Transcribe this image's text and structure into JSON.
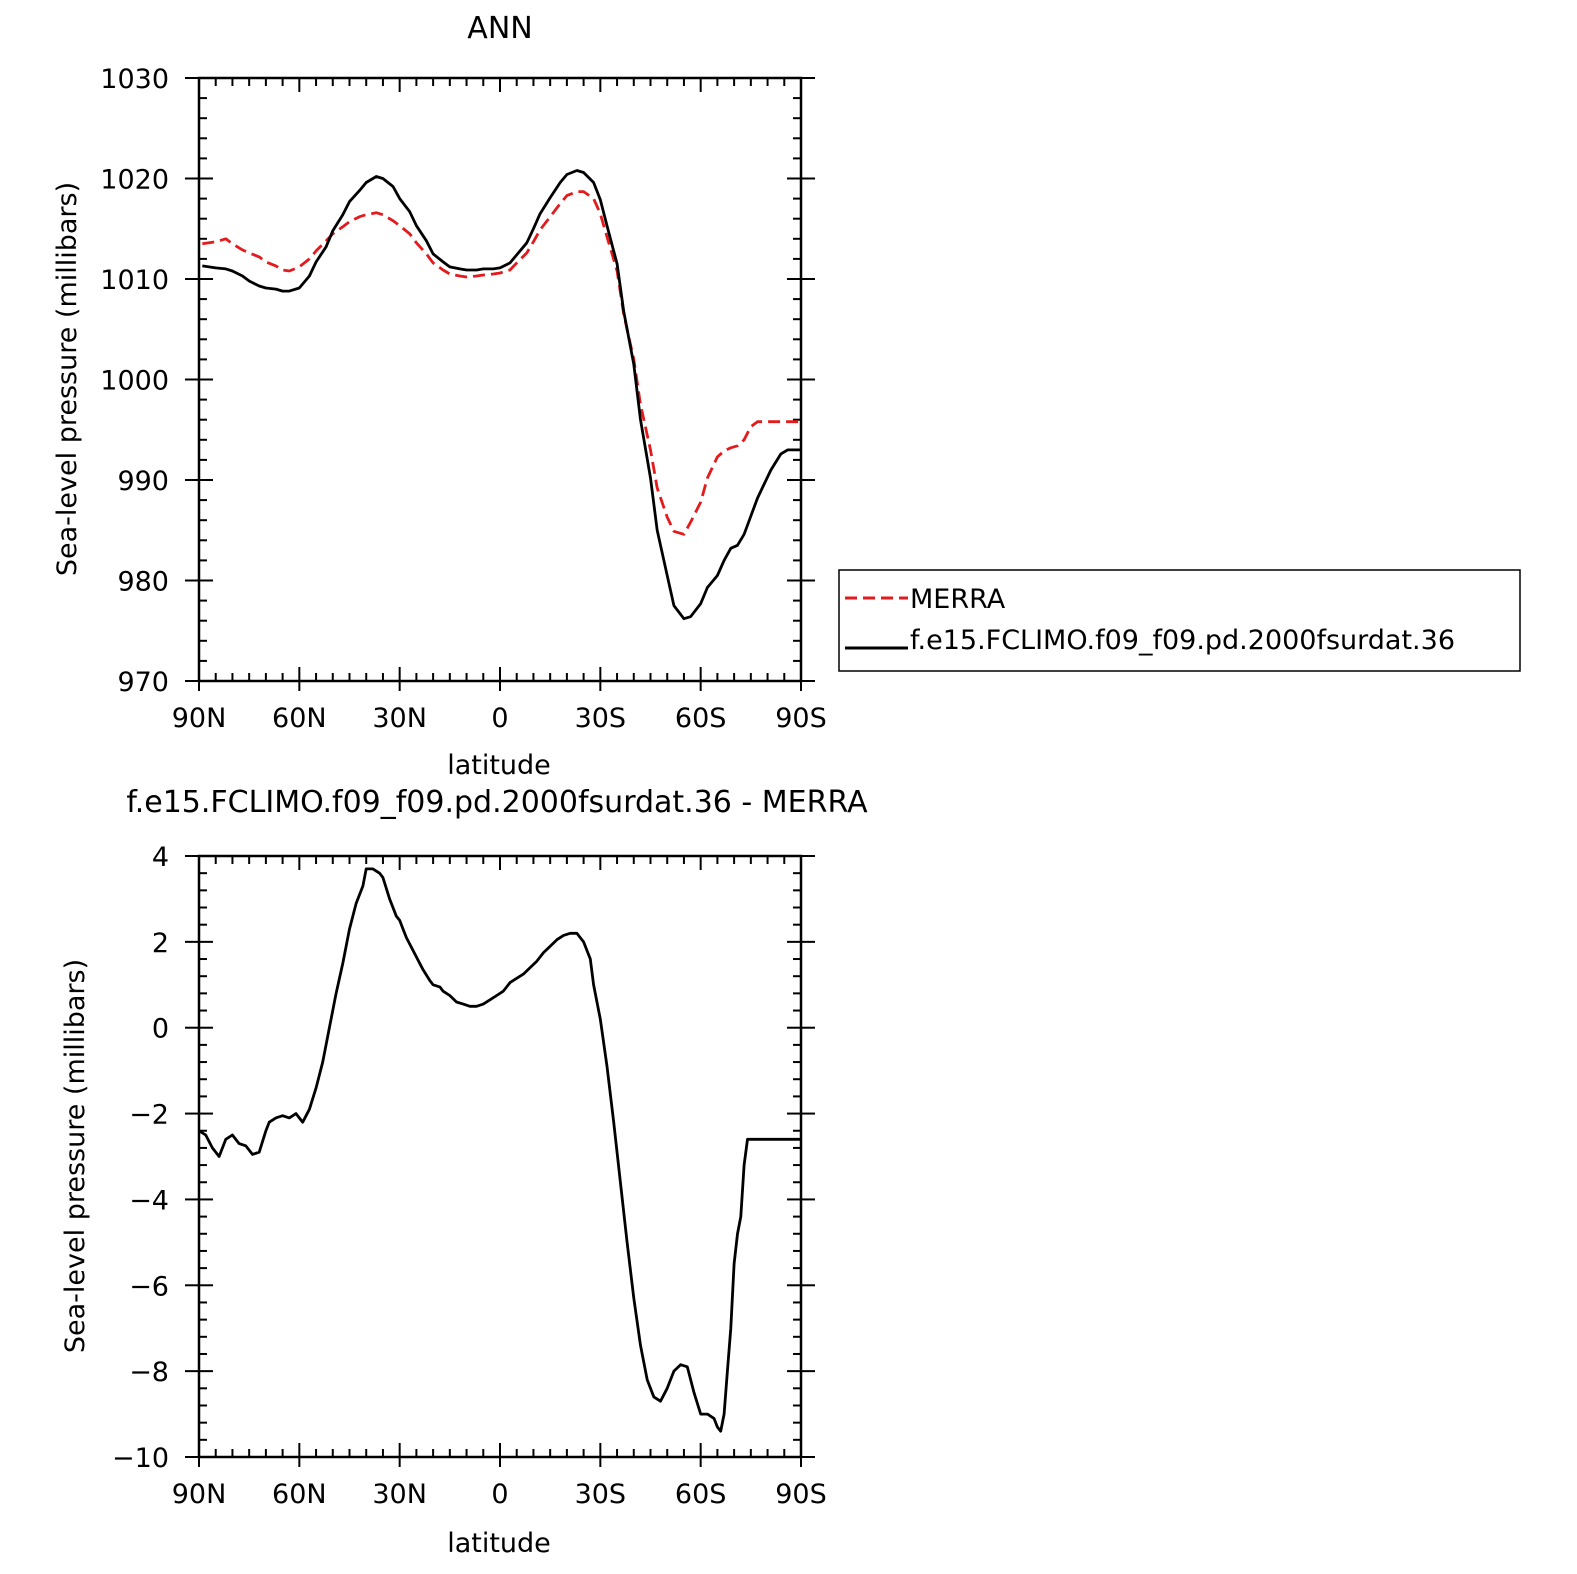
{
  "chart_data": [
    {
      "type": "line",
      "title": "ANN",
      "xlabel": "latitude",
      "ylabel": "Sea-level pressure (millibars)",
      "xlim": [
        90,
        -90
      ],
      "ylim": [
        970,
        1030
      ],
      "x_ticks": [
        90,
        60,
        30,
        0,
        -30,
        -60,
        -90
      ],
      "x_tick_labels": [
        "90N",
        "60N",
        "30N",
        "0",
        "30S",
        "60S",
        "90S"
      ],
      "y_ticks": [
        970,
        980,
        990,
        1000,
        1010,
        1020,
        1030
      ],
      "y_tick_labels": [
        "970",
        "980",
        "990",
        "1000",
        "1010",
        "1020",
        "1030"
      ],
      "legend_position": "right",
      "series": [
        {
          "name": "MERRA",
          "color": "#e41a1c",
          "dash": "dashed",
          "x": [
            89,
            85,
            82,
            80,
            77,
            75,
            72,
            70,
            67,
            65,
            63,
            60,
            57,
            55,
            52,
            50,
            47,
            45,
            42,
            40,
            37,
            35,
            32,
            30,
            27,
            25,
            22,
            20,
            17,
            15,
            12,
            10,
            7,
            5,
            2,
            0,
            -3,
            -5,
            -8,
            -10,
            -12,
            -15,
            -18,
            -20,
            -23,
            -25,
            -28,
            -30,
            -32,
            -35,
            -37,
            -40,
            -42,
            -45,
            -47,
            -50,
            -52,
            -55,
            -57,
            -60,
            -62,
            -65,
            -67,
            -69,
            -71,
            -73,
            -75,
            -77,
            -79,
            -81,
            -84,
            -86,
            -88,
            -90
          ],
          "y": [
            1013.5,
            1013.7,
            1014.0,
            1013.5,
            1012.9,
            1012.6,
            1012.2,
            1011.7,
            1011.3,
            1010.9,
            1010.8,
            1011.2,
            1012.0,
            1012.8,
            1013.8,
            1014.5,
            1015.2,
            1015.7,
            1016.2,
            1016.4,
            1016.6,
            1016.4,
            1015.8,
            1015.3,
            1014.5,
            1013.6,
            1012.5,
            1011.6,
            1010.9,
            1010.5,
            1010.3,
            1010.2,
            1010.3,
            1010.4,
            1010.5,
            1010.6,
            1010.9,
            1011.6,
            1012.6,
            1013.7,
            1014.9,
            1016.2,
            1017.5,
            1018.3,
            1018.7,
            1018.7,
            1018.0,
            1016.5,
            1014.2,
            1010.8,
            1006.5,
            1002.0,
            997.5,
            993.0,
            989.2,
            986.3,
            984.9,
            984.6,
            985.8,
            987.8,
            990.2,
            992.3,
            992.9,
            993.2,
            993.4,
            994.0,
            995.3,
            995.8,
            995.8,
            995.8,
            995.8,
            995.8,
            995.8,
            995.8
          ]
        },
        {
          "name": "f.e15.FCLIMO.f09_f09.pd.2000fsurdat.36",
          "color": "#000000",
          "dash": "solid",
          "x": [
            89,
            85,
            82,
            80,
            77,
            75,
            72,
            70,
            67,
            65,
            63,
            60,
            57,
            55,
            52,
            50,
            47,
            45,
            42,
            40,
            37,
            35,
            32,
            30,
            27,
            25,
            22,
            20,
            17,
            15,
            12,
            10,
            7,
            5,
            2,
            0,
            -3,
            -5,
            -8,
            -10,
            -12,
            -15,
            -18,
            -20,
            -23,
            -25,
            -28,
            -30,
            -32,
            -35,
            -37,
            -40,
            -42,
            -45,
            -47,
            -50,
            -52,
            -55,
            -57,
            -60,
            -62,
            -65,
            -67,
            -69,
            -71,
            -73,
            -75,
            -77,
            -79,
            -81,
            -84,
            -86,
            -88,
            -90
          ],
          "y": [
            1011.3,
            1011.1,
            1011.0,
            1010.8,
            1010.3,
            1009.8,
            1009.3,
            1009.1,
            1009.0,
            1008.8,
            1008.8,
            1009.1,
            1010.3,
            1011.7,
            1013.2,
            1014.8,
            1016.4,
            1017.7,
            1018.8,
            1019.6,
            1020.2,
            1020.0,
            1019.2,
            1018.0,
            1016.7,
            1015.3,
            1013.8,
            1012.5,
            1011.7,
            1011.2,
            1011.0,
            1010.9,
            1010.9,
            1011.0,
            1011.0,
            1011.1,
            1011.6,
            1012.4,
            1013.6,
            1015.0,
            1016.5,
            1018.1,
            1019.6,
            1020.4,
            1020.8,
            1020.6,
            1019.6,
            1017.9,
            1015.3,
            1011.5,
            1006.8,
            1001.5,
            996.0,
            990.2,
            985.0,
            980.5,
            977.5,
            976.2,
            976.4,
            977.7,
            979.3,
            980.5,
            982.0,
            983.2,
            983.5,
            984.6,
            986.4,
            988.2,
            989.6,
            991.0,
            992.6,
            993.0,
            993.0,
            993.0
          ]
        }
      ]
    },
    {
      "type": "line",
      "title": "f.e15.FCLIMO.f09_f09.pd.2000fsurdat.36 - MERRA",
      "xlabel": "latitude",
      "ylabel": "Sea-level pressure (millibars)",
      "xlim": [
        90,
        -90
      ],
      "ylim": [
        -10,
        4
      ],
      "x_ticks": [
        90,
        60,
        30,
        0,
        -30,
        -60,
        -90
      ],
      "x_tick_labels": [
        "90N",
        "60N",
        "30N",
        "0",
        "30S",
        "60S",
        "90S"
      ],
      "y_ticks": [
        4,
        2,
        0,
        -2,
        -4,
        -6,
        -8,
        -10
      ],
      "y_tick_labels": [
        "4",
        "2",
        "0",
        "−2",
        "−4",
        "−6",
        "−8",
        "−10"
      ],
      "series": [
        {
          "color": "#000000",
          "dash": "solid",
          "x": [
            90,
            88,
            86,
            84,
            82,
            80,
            78,
            76,
            74,
            72,
            70,
            69,
            67,
            65,
            63,
            61,
            60,
            59,
            57,
            55,
            53,
            51,
            49,
            47,
            45,
            43,
            41,
            40,
            38,
            36,
            35,
            33,
            31,
            30,
            29,
            28,
            26,
            24,
            23,
            21,
            20,
            18,
            17,
            15,
            13,
            11,
            9,
            7,
            5,
            3,
            1,
            -1,
            -3,
            -5,
            -7,
            -9,
            -11,
            -13,
            -15,
            -17,
            -19,
            -21,
            -23,
            -25,
            -27,
            -28,
            -30,
            -32,
            -34,
            -36,
            -38,
            -40,
            -42,
            -44,
            -46,
            -48,
            -50,
            -52,
            -54,
            -56,
            -58,
            -60,
            -62,
            -64,
            -65,
            -66,
            -67,
            -68,
            -69,
            -70,
            -71,
            -72,
            -73,
            -74,
            -75,
            -76,
            -77,
            -78,
            -79,
            -80,
            -81,
            -82,
            -83,
            -84,
            -85,
            -86,
            -87,
            -88,
            -89,
            -90
          ],
          "y": [
            -2.4,
            -2.5,
            -2.8,
            -3.0,
            -2.6,
            -2.5,
            -2.7,
            -2.75,
            -2.95,
            -2.9,
            -2.4,
            -2.2,
            -2.1,
            -2.05,
            -2.1,
            -2.0,
            -2.1,
            -2.2,
            -1.9,
            -1.4,
            -0.8,
            0.0,
            0.8,
            1.5,
            2.3,
            2.9,
            3.3,
            3.7,
            3.7,
            3.6,
            3.5,
            3.0,
            2.6,
            2.5,
            2.3,
            2.1,
            1.8,
            1.5,
            1.35,
            1.1,
            1.0,
            0.95,
            0.85,
            0.75,
            0.6,
            0.55,
            0.5,
            0.5,
            0.55,
            0.65,
            0.75,
            0.85,
            1.05,
            1.15,
            1.25,
            1.4,
            1.55,
            1.75,
            1.9,
            2.05,
            2.15,
            2.2,
            2.2,
            2.0,
            1.6,
            1.0,
            0.2,
            -0.9,
            -2.2,
            -3.6,
            -5.0,
            -6.3,
            -7.4,
            -8.2,
            -8.6,
            -8.7,
            -8.4,
            -8.0,
            -7.85,
            -7.9,
            -8.5,
            -9.0,
            -9.0,
            -9.1,
            -9.3,
            -9.4,
            -9.0,
            -8.0,
            -7.0,
            -5.5,
            -4.8,
            -4.4,
            -3.2,
            -2.6,
            -2.6,
            -2.6,
            -2.6,
            -2.6,
            -2.6,
            -2.6,
            -2.6,
            -2.6,
            -2.6,
            -2.6,
            -2.6,
            -2.6,
            -2.6,
            -2.6,
            -2.6,
            -2.6
          ]
        }
      ]
    }
  ]
}
